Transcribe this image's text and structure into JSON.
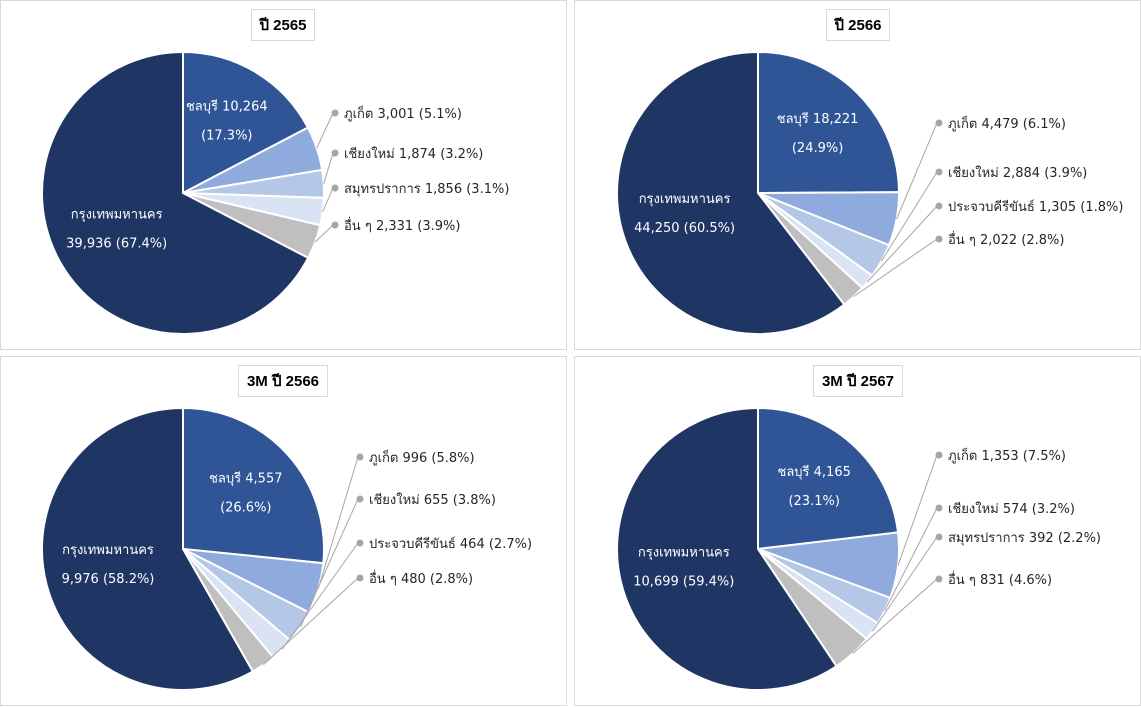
{
  "chart_data": [
    {
      "type": "pie",
      "title": "ปี 2565",
      "slices": [
        {
          "label": "กรุงเทพมหานคร",
          "value": 39936,
          "value_text": "39,936",
          "percent": "(67.4%)",
          "color": "#1f3564"
        },
        {
          "label": "ชลบุรี",
          "value": 10264,
          "value_text": "10,264",
          "percent": "(17.3%)",
          "color": "#2f5597"
        },
        {
          "label": "ภูเก็ต",
          "value": 3001,
          "value_text": "3,001",
          "percent": "(5.1%)",
          "color": "#8faadc"
        },
        {
          "label": "เชียงใหม่",
          "value": 1874,
          "value_text": "1,874",
          "percent": "(3.2%)",
          "color": "#b4c7e7"
        },
        {
          "label": "สมุทรปราการ",
          "value": 1856,
          "value_text": "1,856",
          "percent": "(3.1%)",
          "color": "#dae3f3"
        },
        {
          "label": "อื่น ๆ",
          "value": 2331,
          "value_text": "2,331",
          "percent": "(3.9%)",
          "color": "#bfbfbf"
        }
      ]
    },
    {
      "type": "pie",
      "title": "ปี 2566",
      "slices": [
        {
          "label": "กรุงเทพมหานคร",
          "value": 44250,
          "value_text": "44,250",
          "percent": "(60.5%)",
          "color": "#1f3564"
        },
        {
          "label": "ชลบุรี",
          "value": 18221,
          "value_text": "18,221",
          "percent": "(24.9%)",
          "color": "#2f5597"
        },
        {
          "label": "ภูเก็ต",
          "value": 4479,
          "value_text": "4,479",
          "percent": "(6.1%)",
          "color": "#8faadc"
        },
        {
          "label": "เชียงใหม่",
          "value": 2884,
          "value_text": "2,884",
          "percent": "(3.9%)",
          "color": "#b4c7e7"
        },
        {
          "label": "ประจวบคีรีขันธ์",
          "value": 1305,
          "value_text": "1,305",
          "percent": "(1.8%)",
          "color": "#dae3f3"
        },
        {
          "label": "อื่น ๆ",
          "value": 2022,
          "value_text": "2,022",
          "percent": "(2.8%)",
          "color": "#bfbfbf"
        }
      ]
    },
    {
      "type": "pie",
      "title": "3M ปี 2566",
      "slices": [
        {
          "label": "กรุงเทพมหานคร",
          "value": 9976,
          "value_text": "9,976",
          "percent": "(58.2%)",
          "color": "#1f3564"
        },
        {
          "label": "ชลบุรี",
          "value": 4557,
          "value_text": "4,557",
          "percent": "(26.6%)",
          "color": "#2f5597"
        },
        {
          "label": "ภูเก็ต",
          "value": 996,
          "value_text": "996",
          "percent": "(5.8%)",
          "color": "#8faadc"
        },
        {
          "label": "เชียงใหม่",
          "value": 655,
          "value_text": "655",
          "percent": "(3.8%)",
          "color": "#b4c7e7"
        },
        {
          "label": "ประจวบคีรีขันธ์",
          "value": 464,
          "value_text": "464",
          "percent": "(2.7%)",
          "color": "#dae3f3"
        },
        {
          "label": "อื่น ๆ",
          "value": 480,
          "value_text": "480",
          "percent": "(2.8%)",
          "color": "#bfbfbf"
        }
      ]
    },
    {
      "type": "pie",
      "title": "3M ปี 2567",
      "slices": [
        {
          "label": "กรุงเทพมหานคร",
          "value": 10699,
          "value_text": "10,699",
          "percent": "(59.4%)",
          "color": "#1f3564"
        },
        {
          "label": "ชลบุรี",
          "value": 4165,
          "value_text": "4,165",
          "percent": "(23.1%)",
          "color": "#2f5597"
        },
        {
          "label": "ภูเก็ต",
          "value": 1353,
          "value_text": "1,353",
          "percent": "(7.5%)",
          "color": "#8faadc"
        },
        {
          "label": "เชียงใหม่",
          "value": 574,
          "value_text": "574",
          "percent": "(3.2%)",
          "color": "#b4c7e7"
        },
        {
          "label": "สมุทรปราการ",
          "value": 392,
          "value_text": "392",
          "percent": "(2.2%)",
          "color": "#dae3f3"
        },
        {
          "label": "อื่น ๆ",
          "value": 831,
          "value_text": "831",
          "percent": "(4.6%)",
          "color": "#bfbfbf"
        }
      ]
    }
  ]
}
